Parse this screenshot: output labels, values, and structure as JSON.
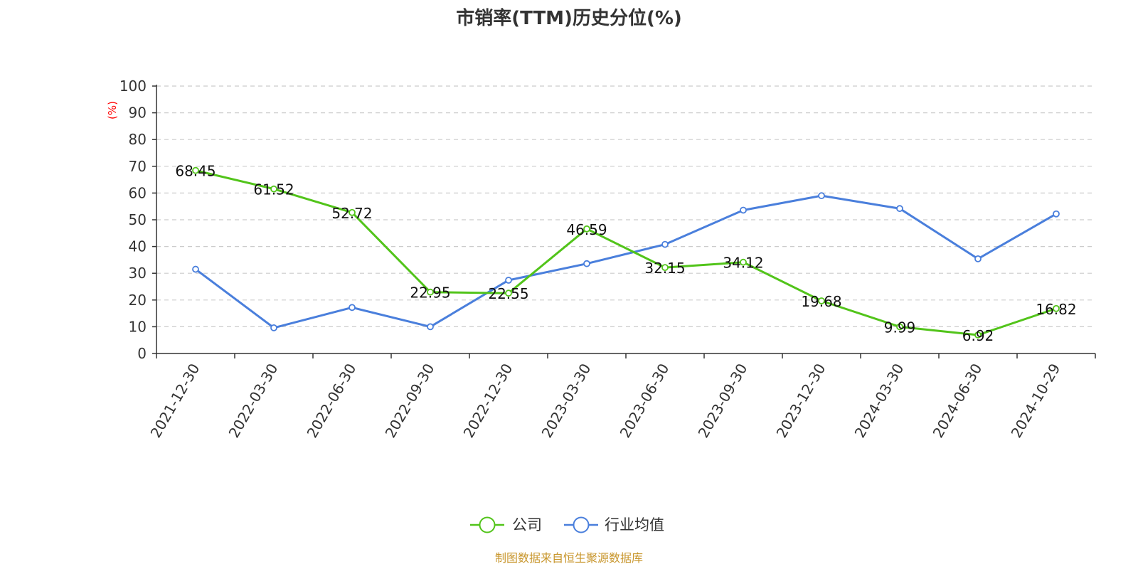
{
  "source_note": "制图数据来自恒生聚源数据库",
  "chart_data": {
    "type": "line",
    "title": "市销率(TTM)历史分位(%)",
    "ylabel": "(%)",
    "xlabel": "",
    "ylim": [
      0,
      100
    ],
    "yticks": [
      0,
      10,
      20,
      30,
      40,
      50,
      60,
      70,
      80,
      90,
      100
    ],
    "grid": true,
    "legend_position": "bottom",
    "categories": [
      "2021-12-30",
      "2022-03-30",
      "2022-06-30",
      "2022-09-30",
      "2022-12-30",
      "2023-03-30",
      "2023-06-30",
      "2023-09-30",
      "2023-12-30",
      "2024-03-30",
      "2024-06-30",
      "2024-10-29"
    ],
    "series": [
      {
        "name": "公司",
        "color": "#52c41a",
        "show_labels": true,
        "labels": [
          "68.45",
          "61.52",
          "52.72",
          "22.95",
          "22.55",
          "46.59",
          "32.15",
          "34.12",
          "19.68",
          "9.99",
          "6.92",
          "16.82"
        ],
        "values": [
          68.45,
          61.52,
          52.72,
          22.95,
          22.55,
          46.59,
          32.15,
          34.12,
          19.68,
          9.99,
          6.92,
          16.82
        ]
      },
      {
        "name": "行业均值",
        "color": "#4a7fdc",
        "show_labels": false,
        "values": [
          31.5,
          9.6,
          17.2,
          10.0,
          27.4,
          33.6,
          40.8,
          53.6,
          59.0,
          54.2,
          35.4,
          52.2
        ]
      }
    ]
  }
}
